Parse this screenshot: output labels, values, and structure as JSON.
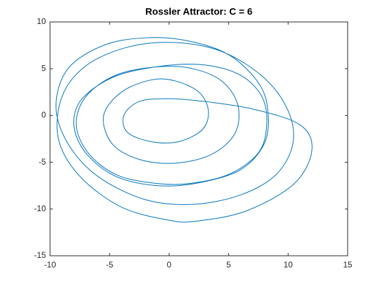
{
  "chart_data": {
    "type": "line",
    "title": "Rossler Attractor: C = 6",
    "series": [
      {
        "color": "#0072bd",
        "x": [
          3,
          0,
          -2.5,
          -3.8,
          -3.5,
          -1.5,
          0.8,
          2.8,
          3.3,
          2.5,
          0.5,
          -1.5,
          -4,
          -5.5,
          -4.8,
          -2.5,
          0.5,
          3.5,
          5.5,
          5.8,
          4.5,
          2,
          -1,
          -4.5,
          -7,
          -7.8,
          -6.8,
          -4.5,
          -1.5,
          1.5,
          5,
          7.5,
          8.2,
          7.8,
          6,
          3,
          -0.5,
          -4.5,
          -7.3,
          -8,
          -7,
          -4.5,
          -1,
          2.5,
          6,
          8,
          8.3,
          7.5,
          5,
          1.5,
          -2,
          -5.5,
          -8.5,
          -9.5,
          -8.5,
          -6,
          -2,
          2,
          6,
          9,
          10.4,
          10,
          8,
          4.5,
          0.5,
          -3.5,
          -7,
          -9,
          -9.3,
          -7.5,
          -4,
          0,
          2.3,
          6.5,
          10.5,
          12,
          11,
          7,
          3
        ],
        "values": [
          1.5,
          1.8,
          1.5,
          0,
          -1.8,
          -2.8,
          -2.8,
          -1.5,
          0.5,
          2.5,
          3.7,
          3.8,
          2.5,
          0,
          -3,
          -4.7,
          -5.1,
          -4.2,
          -2,
          1,
          3.6,
          5,
          5.2,
          4.3,
          2,
          -1,
          -4,
          -6.3,
          -7.2,
          -7.3,
          -6.3,
          -4,
          -1,
          2,
          4.3,
          5.4,
          5.3,
          4.2,
          1.8,
          -1,
          -4,
          -6.5,
          -7.5,
          -7.2,
          -5.8,
          -3,
          0.5,
          3.5,
          6.5,
          8,
          8.3,
          7.5,
          5,
          1,
          -3,
          -6.5,
          -9,
          -9.5,
          -8.5,
          -6.3,
          -3,
          0.5,
          4,
          6.8,
          7.8,
          7.3,
          5.3,
          2,
          -2.5,
          -6.5,
          -9.8,
          -11.2,
          -11.3,
          -10.2,
          -7.3,
          -3.7,
          -1,
          0.7,
          1.5
        ]
      }
    ],
    "xlim": [
      -10,
      15
    ],
    "xticks": [
      -10,
      -5,
      0,
      5,
      10,
      15
    ],
    "ylim": [
      -15,
      10
    ],
    "yticks": [
      -15,
      -10,
      -5,
      0,
      5,
      10
    ],
    "grid": false
  }
}
